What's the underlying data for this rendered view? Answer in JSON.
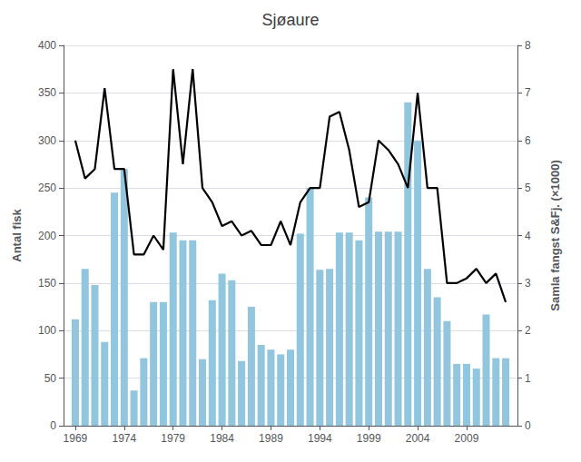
{
  "chart_data": {
    "type": "bar",
    "title": "Sjøaure",
    "ylabel": "Antal fisk",
    "y2label": "Samla fangst S&Fj. (×1000)",
    "x": [
      1969,
      1970,
      1971,
      1972,
      1973,
      1974,
      1975,
      1976,
      1977,
      1978,
      1979,
      1980,
      1981,
      1982,
      1983,
      1984,
      1985,
      1986,
      1987,
      1988,
      1989,
      1990,
      1991,
      1992,
      1993,
      1994,
      1995,
      1996,
      1997,
      1998,
      1999,
      2000,
      2001,
      2002,
      2003,
      2004,
      2005,
      2006,
      2007,
      2008,
      2009,
      2010,
      2011,
      2012,
      2013
    ],
    "series": [
      {
        "type": "bar",
        "color": "#92C5DE",
        "values": [
          112,
          165,
          148,
          88,
          245,
          270,
          37,
          71,
          130,
          130,
          203,
          195,
          195,
          70,
          132,
          160,
          153,
          68,
          125,
          85,
          80,
          75,
          80,
          202,
          250,
          164,
          165,
          203,
          203,
          195,
          240,
          204,
          204,
          204,
          340,
          300,
          165,
          135,
          110,
          65,
          65,
          60,
          117,
          71,
          71
        ]
      },
      {
        "type": "line",
        "color": "#000000",
        "values": [
          300,
          260,
          270,
          355,
          270,
          270,
          180,
          180,
          200,
          185,
          375,
          275,
          375,
          250,
          235,
          210,
          215,
          200,
          205,
          190,
          190,
          215,
          190,
          235,
          250,
          250,
          325,
          330,
          290,
          230,
          235,
          300,
          290,
          275,
          250,
          350,
          250,
          250,
          150,
          150,
          155,
          165,
          150,
          160,
          130
        ]
      }
    ],
    "xlim": [
      1967.8,
      2014.2
    ],
    "xticks": [
      1969,
      1974,
      1979,
      1984,
      1989,
      1994,
      1999,
      2004,
      2009
    ],
    "ylim": [
      0,
      400
    ],
    "yticks": [
      0,
      50,
      100,
      150,
      200,
      250,
      300,
      350,
      400
    ],
    "y2lim": [
      0,
      8
    ],
    "y2ticks": [
      0,
      1,
      2,
      3,
      4,
      5,
      6,
      7,
      8
    ],
    "grid": "y"
  }
}
